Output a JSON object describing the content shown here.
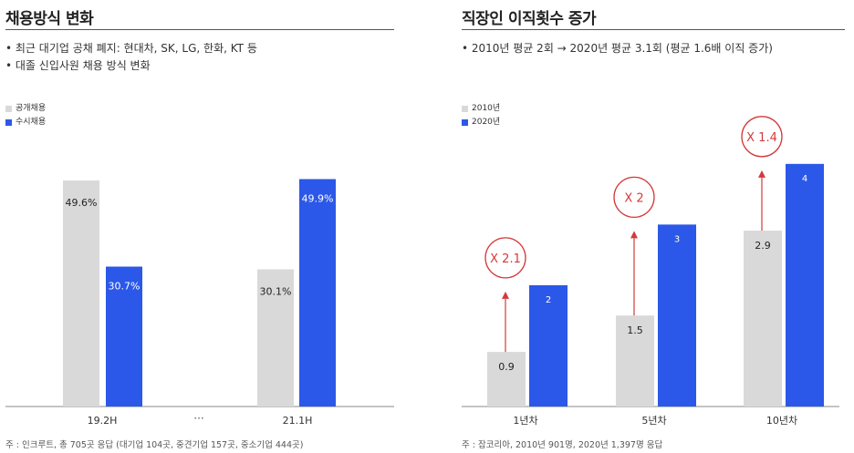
{
  "colors": {
    "public": "#d9d9d9",
    "open": "#2b58e8",
    "arrow": "#d33a3a",
    "axis": "#888888"
  },
  "left": {
    "title": "채용방식 변화",
    "bullets": [
      "• 최근 대기업 공채 폐지: 현대차, SK, LG, 한화, KT 등",
      "• 대졸 신입사원 채용 방식 변화"
    ],
    "footnote": "주 : 인크루트, 총 705곳 응답 (대기업 104곳, 중견기업 157곳, 중소기업 444곳)",
    "ellipsis": "···"
  },
  "right": {
    "title": "직장인 이직횟수 증가",
    "bullets": [
      "• 2010년 평균 2회 → 2020년 평균 3.1회 (평균 1.6배 이직 증가)"
    ],
    "footnote": "주 : 잡코리아, 2010년 901명, 2020년 1,397명 응답"
  },
  "chart_data": [
    {
      "type": "bar",
      "categories": [
        "19.2H",
        "21.1H"
      ],
      "series": [
        {
          "name": "공개채용",
          "values": [
            49.6,
            30.1
          ],
          "labels": [
            "49.6%",
            "30.1%"
          ]
        },
        {
          "name": "수시채용",
          "values": [
            30.7,
            49.9
          ],
          "labels": [
            "30.7%",
            "49.9%"
          ]
        }
      ],
      "ylim": [
        0,
        55
      ],
      "legend": "top-left",
      "grid": false
    },
    {
      "type": "bar",
      "categories": [
        "1년차",
        "5년차",
        "10년차"
      ],
      "series": [
        {
          "name": "2010년",
          "values": [
            0.9,
            1.5,
            2.9
          ],
          "labels": [
            "0.9",
            "1.5",
            "2.9"
          ]
        },
        {
          "name": "2020년",
          "values": [
            2,
            3,
            4
          ],
          "labels": [
            "2",
            "3",
            "4"
          ]
        }
      ],
      "annotations": [
        "X 2.1",
        "X 2",
        "X 1.4"
      ],
      "ylim": [
        0,
        5.5
      ],
      "legend": "top-left",
      "grid": false
    }
  ]
}
